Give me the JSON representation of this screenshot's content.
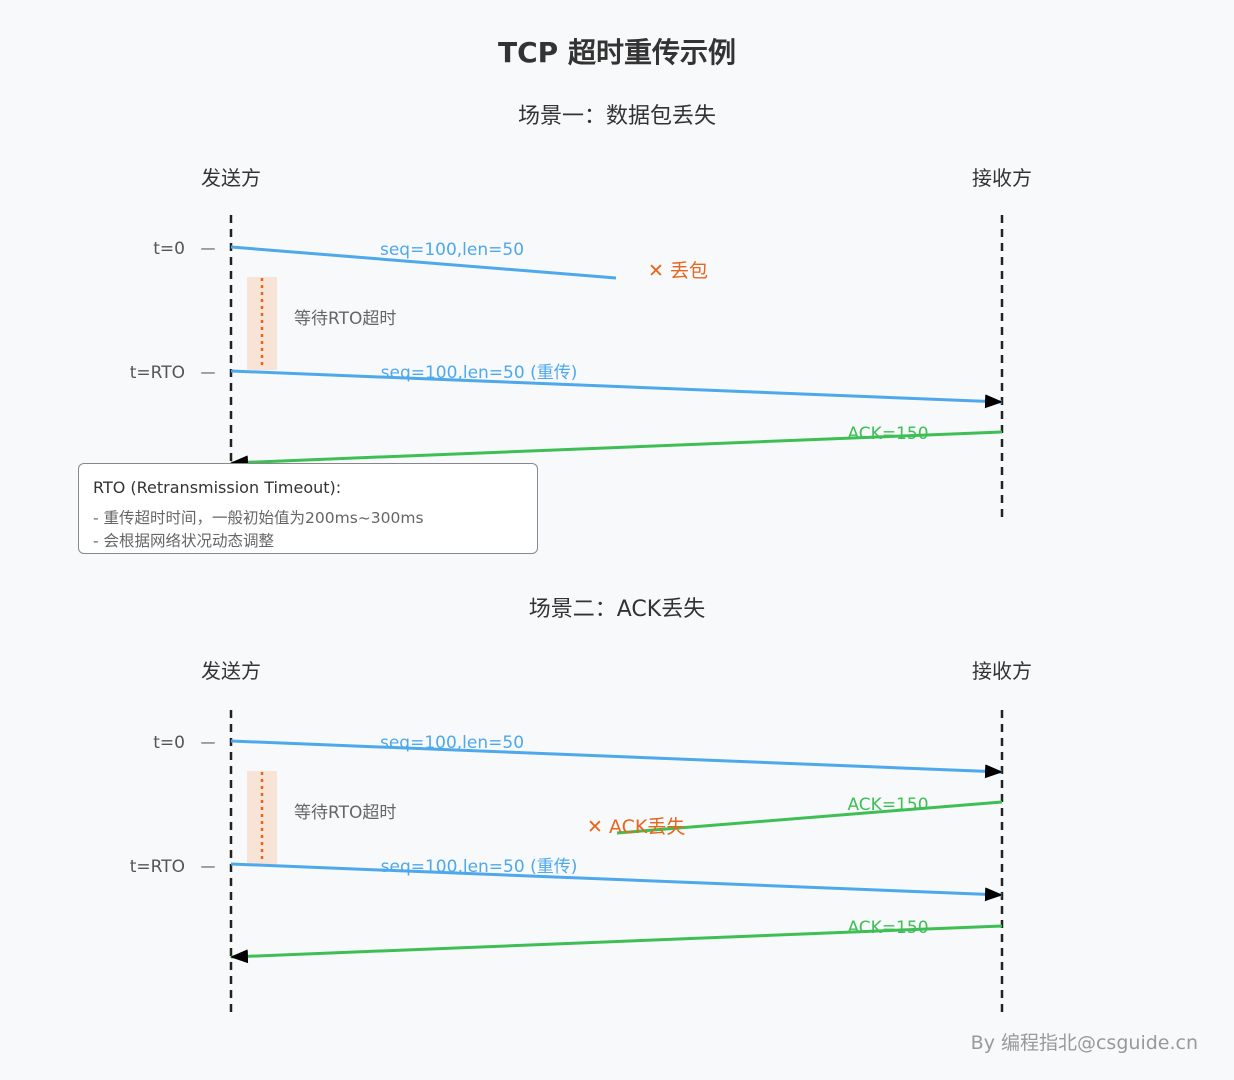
{
  "title": "TCP 超时重传示例",
  "footer": "By 编程指北@csguide.cn",
  "colors": {
    "data": "#4ea8ec",
    "ack": "#3dbf55",
    "loss": "#e8651c",
    "lifeline": "#222222",
    "wait_band": "#f8e4d6",
    "text": "#333333",
    "muted": "#666666"
  },
  "scenario1": {
    "title": "场景一：数据包丢失",
    "sender": "发送方",
    "receiver": "接收方",
    "t0": "t=0",
    "trto": "t=RTO",
    "tick": "—",
    "msg1": "seq=100,len=50",
    "loss": "✕ 丢包",
    "wait": "等待RTO超时",
    "msg2": "seq=100,len=50 (重传)",
    "ack": "ACK=150"
  },
  "note": {
    "title": "RTO (Retransmission Timeout):",
    "line1": "- 重传超时时间，一般初始值为200ms~300ms",
    "line2": "- 会根据网络状况动态调整"
  },
  "scenario2": {
    "title": "场景二：ACK丢失",
    "sender": "发送方",
    "receiver": "接收方",
    "t0": "t=0",
    "trto": "t=RTO",
    "tick": "—",
    "msg1": "seq=100,len=50",
    "ack1": "ACK=150",
    "loss": "✕ ACK丢失",
    "wait": "等待RTO超时",
    "msg2": "seq=100,len=50 (重传)",
    "ack2": "ACK=150"
  }
}
